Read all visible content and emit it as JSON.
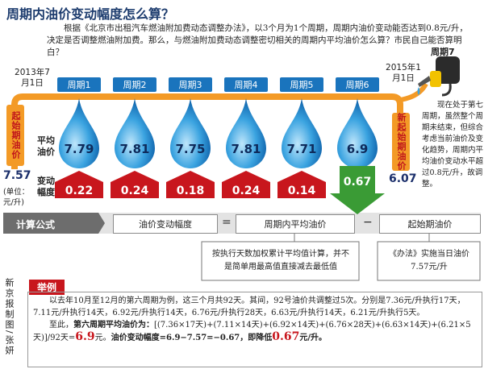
{
  "header": {
    "title": "周期内油价变动幅度怎么算？",
    "intro": "根据《北京市出租汽车燃油附加费动态调整办法》，以3个月为1个周期，周期内油价变动能否达到0.8元/升，决定是否调整燃油附加费。那么，与燃油附加费动态调整密切相关的周期内平均油价怎么算？市民自己能否算明白？"
  },
  "timeline": {
    "start_date": "2013年7月1日",
    "start_label": "起始期油价",
    "start_price": 7.57,
    "unit": "(单位：元/升)",
    "end_date": "2015年1月1日",
    "end_label": "新起始期油价",
    "end_price": 6.07,
    "current_period": "周期7",
    "current_note": "现在处于第七周期，虽然整个周期未结束，但综合考虑当前油价及变化趋势，周期内平均油价变动水平超过0.8元/升，故调整。",
    "avg_label": "平均油价",
    "change_label": "变动幅度",
    "periods": [
      {
        "name": "周期1",
        "avg": 7.79,
        "change": 0.22
      },
      {
        "name": "周期2",
        "avg": 7.81,
        "change": 0.24
      },
      {
        "name": "周期3",
        "avg": 7.75,
        "change": 0.18
      },
      {
        "name": "周期4",
        "avg": 7.81,
        "change": 0.24
      },
      {
        "name": "周期5",
        "avg": 7.71,
        "change": 0.14
      },
      {
        "name": "周期6",
        "avg": 6.9,
        "change": 0.67
      }
    ]
  },
  "formula": {
    "label": "计算公式",
    "lhs": "油价变动幅度",
    "equals": "=",
    "term1": "周期内平均油价",
    "minus": "−",
    "term2": "起始期油价",
    "note1": "按执行天数加权累计平均值计算，并不是简单用最高值直接减去最低值",
    "note2": "《办法》实施当日油价7.57元/升"
  },
  "credit": "新京报制图/张妍",
  "example": {
    "label": "举例",
    "paragraph": "以去年10月至12月的第六周期为例，这三个月共92天。其间，92号油价共调整过5次。分别是7.36元/升执行17天，7.11元/升执行14天，6.92元/升执行14天，6.76元/升执行28天，6.63元/升执行14天，6.21元/升执行5天。",
    "lead": "至此，",
    "bold": "第六周期平均油价为：",
    "expression": "[(7.36×17天)+(7.11×14天)+(6.92×14天)+(6.76×28天)+(6.63×14天)+(6.21×5天)]/92天=",
    "result": 6.9,
    "after_result": "元。",
    "change_text": "油价变动幅度=6.9−7.57=−0.67，即降低",
    "change_value": 0.67,
    "change_unit": "元/升。"
  }
}
